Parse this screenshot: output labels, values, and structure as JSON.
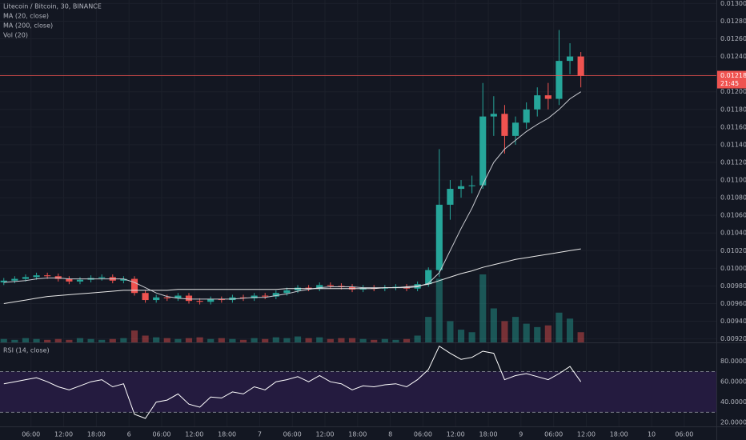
{
  "chart_data": {
    "type": "candlestick",
    "title": "Litecoin / Bitcoin, 30, BINANCE",
    "colors": {
      "up": "#26a69a",
      "down": "#ef5350"
    },
    "x": [
      1,
      3,
      5,
      7,
      9,
      11,
      13,
      15,
      17,
      19,
      21,
      23,
      25,
      27,
      29,
      31,
      33,
      35,
      37,
      39,
      41,
      43,
      45,
      47,
      49,
      51,
      53,
      55,
      57,
      59,
      61,
      63,
      65,
      67,
      69,
      71,
      73,
      75,
      77,
      79,
      81,
      83,
      85,
      87,
      89,
      91,
      93,
      95,
      97,
      99,
      101,
      103,
      105,
      107
    ],
    "open": [
      0.00984,
      0.00986,
      0.00988,
      0.0099,
      0.00992,
      0.00991,
      0.00988,
      0.00985,
      0.00987,
      0.00989,
      0.0099,
      0.00986,
      0.00988,
      0.00972,
      0.00964,
      0.00967,
      0.00966,
      0.00969,
      0.00963,
      0.00962,
      0.00965,
      0.00964,
      0.00967,
      0.00966,
      0.00969,
      0.00968,
      0.00972,
      0.00975,
      0.00978,
      0.00977,
      0.00981,
      0.0098,
      0.00979,
      0.00976,
      0.00978,
      0.00977,
      0.00978,
      0.00979,
      0.00977,
      0.00982,
      0.00998,
      0.01072,
      0.0109,
      0.01093,
      0.01094,
      0.01172,
      0.01175,
      0.0115,
      0.01165,
      0.0118,
      0.01196,
      0.01192,
      0.01235,
      0.0124
    ],
    "high": [
      0.00989,
      0.00991,
      0.00993,
      0.00995,
      0.00995,
      0.00994,
      0.00991,
      0.0099,
      0.00992,
      0.00993,
      0.00993,
      0.00991,
      0.00991,
      0.00975,
      0.0097,
      0.0097,
      0.00972,
      0.00972,
      0.00966,
      0.00968,
      0.00968,
      0.0097,
      0.0097,
      0.00972,
      0.00972,
      0.00975,
      0.00978,
      0.00981,
      0.00981,
      0.00984,
      0.00984,
      0.00983,
      0.00982,
      0.00981,
      0.00981,
      0.00981,
      0.00982,
      0.00982,
      0.00985,
      0.01001,
      0.01135,
      0.011,
      0.011,
      0.01105,
      0.0121,
      0.01195,
      0.01185,
      0.01172,
      0.01188,
      0.01205,
      0.0121,
      0.0127,
      0.01255,
      0.01245
    ],
    "low": [
      0.00981,
      0.00983,
      0.00985,
      0.00987,
      0.00988,
      0.00985,
      0.00982,
      0.00982,
      0.00984,
      0.00986,
      0.00983,
      0.00983,
      0.00969,
      0.00961,
      0.00961,
      0.00963,
      0.00963,
      0.0096,
      0.00959,
      0.00959,
      0.00961,
      0.00961,
      0.00963,
      0.00963,
      0.00965,
      0.00965,
      0.00969,
      0.00972,
      0.00974,
      0.00974,
      0.00977,
      0.00976,
      0.00973,
      0.00973,
      0.00974,
      0.00974,
      0.00975,
      0.00974,
      0.00974,
      0.00979,
      0.0099,
      0.01055,
      0.0108,
      0.01085,
      0.0109,
      0.0115,
      0.0113,
      0.0114,
      0.01158,
      0.01172,
      0.0118,
      0.01185,
      0.0122,
      0.01205
    ],
    "close": [
      0.00986,
      0.00988,
      0.0099,
      0.00992,
      0.00991,
      0.00988,
      0.00985,
      0.00987,
      0.00989,
      0.0099,
      0.00986,
      0.00988,
      0.00972,
      0.00964,
      0.00967,
      0.00966,
      0.00969,
      0.00963,
      0.00962,
      0.00965,
      0.00964,
      0.00967,
      0.00966,
      0.00969,
      0.00968,
      0.00972,
      0.00975,
      0.00978,
      0.00977,
      0.00981,
      0.0098,
      0.00979,
      0.00976,
      0.00978,
      0.00977,
      0.00978,
      0.00979,
      0.00977,
      0.00982,
      0.00998,
      0.01072,
      0.0109,
      0.01093,
      0.01094,
      0.01172,
      0.01175,
      0.0115,
      0.01165,
      0.0118,
      0.01196,
      0.01192,
      0.01235,
      0.0124,
      0.01218
    ],
    "ma": [
      {
        "name": "MA (20, close)",
        "color": "#c9cbd1",
        "values": [
          0.00984,
          0.00985,
          0.00986,
          0.00988,
          0.00989,
          0.00989,
          0.00988,
          0.00988,
          0.00988,
          0.00988,
          0.00988,
          0.00988,
          0.00984,
          0.00978,
          0.00972,
          0.00968,
          0.00966,
          0.00965,
          0.00965,
          0.00965,
          0.00965,
          0.00965,
          0.00966,
          0.00967,
          0.00967,
          0.00969,
          0.00971,
          0.00974,
          0.00976,
          0.00978,
          0.00979,
          0.00979,
          0.00979,
          0.00978,
          0.00978,
          0.00978,
          0.00978,
          0.00978,
          0.00979,
          0.00983,
          0.00995,
          0.0102,
          0.01045,
          0.01068,
          0.01095,
          0.0112,
          0.01135,
          0.01145,
          0.01155,
          0.01163,
          0.0117,
          0.0118,
          0.01192,
          0.012
        ]
      },
      {
        "name": "MA (200, close)",
        "color": "#e8e8e8",
        "values": [
          0.0096,
          0.00962,
          0.00964,
          0.00966,
          0.00968,
          0.00969,
          0.0097,
          0.00971,
          0.00972,
          0.00973,
          0.00974,
          0.00975,
          0.00975,
          0.00975,
          0.00975,
          0.00975,
          0.00976,
          0.00976,
          0.00976,
          0.00976,
          0.00976,
          0.00976,
          0.00976,
          0.00976,
          0.00976,
          0.00976,
          0.00977,
          0.00977,
          0.00977,
          0.00977,
          0.00977,
          0.00977,
          0.00977,
          0.00977,
          0.00977,
          0.00978,
          0.00978,
          0.00979,
          0.0098,
          0.00982,
          0.00986,
          0.0099,
          0.00994,
          0.00997,
          0.01001,
          0.01004,
          0.01007,
          0.0101,
          0.01012,
          0.01014,
          0.01016,
          0.01018,
          0.0102,
          0.01022
        ]
      }
    ],
    "volume": {
      "name": "Vol (20)",
      "values": [
        4,
        3,
        5,
        4,
        3,
        4,
        3,
        5,
        4,
        3,
        4,
        5,
        14,
        8,
        6,
        5,
        4,
        5,
        6,
        4,
        5,
        4,
        3,
        5,
        4,
        6,
        5,
        7,
        5,
        6,
        4,
        5,
        5,
        4,
        3,
        4,
        3,
        4,
        8,
        30,
        75,
        25,
        15,
        12,
        80,
        40,
        25,
        30,
        22,
        18,
        20,
        35,
        28,
        12
      ]
    },
    "ylim": [
      0.00916,
      0.01304
    ],
    "yticks": [
      {
        "value": 0.0092,
        "label": "0.009200"
      },
      {
        "value": 0.0094,
        "label": "0.009400"
      },
      {
        "value": 0.0096,
        "label": "0.009600"
      },
      {
        "value": 0.0098,
        "label": "0.009800"
      },
      {
        "value": 0.01,
        "label": "0.010000"
      },
      {
        "value": 0.0102,
        "label": "0.010200"
      },
      {
        "value": 0.0104,
        "label": "0.010400"
      },
      {
        "value": 0.0106,
        "label": "0.010600"
      },
      {
        "value": 0.0108,
        "label": "0.010800"
      },
      {
        "value": 0.011,
        "label": "0.011000"
      },
      {
        "value": 0.0112,
        "label": "0.011200"
      },
      {
        "value": 0.0114,
        "label": "0.011400"
      },
      {
        "value": 0.0116,
        "label": "0.011600"
      },
      {
        "value": 0.0118,
        "label": "0.011800"
      },
      {
        "value": 0.012,
        "label": "0.012000"
      },
      {
        "value": 0.0122,
        "label": "0.012200"
      },
      {
        "value": 0.0124,
        "label": "0.012400"
      },
      {
        "value": 0.0126,
        "label": "0.012600"
      },
      {
        "value": 0.0128,
        "label": "0.012800"
      },
      {
        "value": 0.013,
        "label": "0.013000"
      }
    ],
    "xlim": [
      0.3,
      131.9
    ],
    "xticks": [
      {
        "value": 6,
        "label": "06:00"
      },
      {
        "value": 12,
        "label": "12:00"
      },
      {
        "value": 18,
        "label": "18:00"
      },
      {
        "value": 24,
        "label": "6"
      },
      {
        "value": 30,
        "label": "06:00"
      },
      {
        "value": 36,
        "label": "12:00"
      },
      {
        "value": 42,
        "label": "18:00"
      },
      {
        "value": 48,
        "label": "7"
      },
      {
        "value": 54,
        "label": "06:00"
      },
      {
        "value": 60,
        "label": "12:00"
      },
      {
        "value": 66,
        "label": "18:00"
      },
      {
        "value": 72,
        "label": "8"
      },
      {
        "value": 78,
        "label": "06:00"
      },
      {
        "value": 84,
        "label": "12:00"
      },
      {
        "value": 90,
        "label": "18:00"
      },
      {
        "value": 96,
        "label": "9"
      },
      {
        "value": 102,
        "label": "06:00"
      },
      {
        "value": 108,
        "label": "12:00"
      },
      {
        "value": 114,
        "label": "18:00"
      },
      {
        "value": 120,
        "label": "10"
      },
      {
        "value": 126,
        "label": "06:00"
      }
    ],
    "last_price": {
      "value": 0.012183,
      "label": "0.012183",
      "color": "#ef5350"
    },
    "countdown": "21:45",
    "grid": true,
    "rsi": {
      "name": "RSI (14, close)",
      "color": "#ffffff",
      "band_color": "#241b3f",
      "values": [
        58,
        60,
        62,
        64,
        60,
        55,
        52,
        56,
        60,
        62,
        55,
        58,
        28,
        24,
        40,
        42,
        48,
        38,
        35,
        45,
        44,
        50,
        48,
        55,
        52,
        60,
        62,
        65,
        60,
        66,
        60,
        58,
        52,
        56,
        55,
        57,
        58,
        55,
        62,
        72,
        95,
        88,
        82,
        84,
        90,
        88,
        62,
        66,
        68,
        65,
        62,
        68,
        75,
        60
      ],
      "ylim": [
        16.1,
        97.1
      ],
      "band": [
        30,
        70
      ],
      "yticks": [
        {
          "value": 20,
          "label": "20.0000"
        },
        {
          "value": 40,
          "label": "40.0000"
        },
        {
          "value": 60,
          "label": "60.0000"
        },
        {
          "value": 80,
          "label": "80.0000"
        }
      ]
    }
  }
}
